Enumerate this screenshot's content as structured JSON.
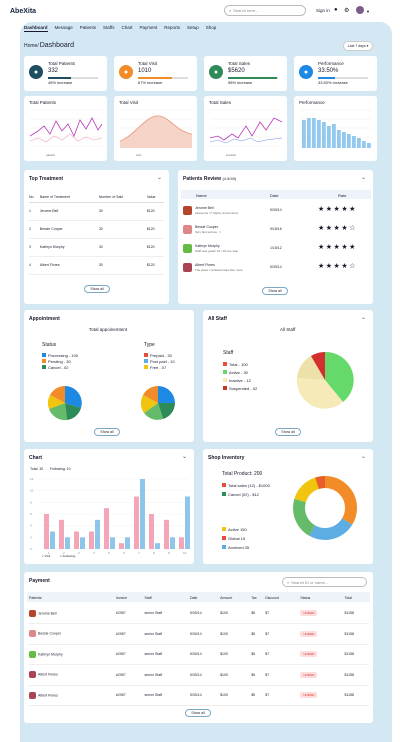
{
  "app": {
    "brand": "AbeXita",
    "search_placeholder": "Search here...",
    "signin": "Sign in"
  },
  "nav": [
    "Dashboard",
    "Message",
    "Patients",
    "Staffs",
    "Chart",
    "Payment",
    "Reports",
    "Setup",
    "Shop"
  ],
  "breadcrumb": {
    "home": "Home/",
    "page": "Dashboard"
  },
  "range_select": "Last 7 days",
  "stats": [
    {
      "label": "Total Patients",
      "value": "332",
      "increase": "45% increase",
      "color": "#1f4e5f",
      "pct": 0.45,
      "icon": "user-icon"
    },
    {
      "label": "Total Visit",
      "value": "1010",
      "increase": "67% increase",
      "color": "#f28c28",
      "pct": 0.67,
      "icon": "visit-icon"
    },
    {
      "label": "Total Sales",
      "value": "$5620",
      "increase": "98% increase",
      "color": "#2e8b57",
      "pct": 0.98,
      "icon": "sales-icon"
    },
    {
      "label": "Performance",
      "value": "33.50%",
      "increase": "33.50% increase",
      "color": "#1e88e5",
      "pct": 0.335,
      "icon": "performance-icon"
    }
  ],
  "mini_charts": [
    {
      "title": "Total Patients",
      "legend": [
        "",
        "patient"
      ]
    },
    {
      "title": "Total Visit",
      "legend": [
        "",
        "visit"
      ]
    },
    {
      "title": "Total Sales",
      "legend": [
        "",
        "product"
      ]
    },
    {
      "title": "Performance",
      "legend": []
    }
  ],
  "top_treatment": {
    "title": "Top Treatment",
    "headers": [
      "No.",
      "Name of Treatment",
      "Number of Sale",
      "Value"
    ],
    "rows": [
      [
        "1",
        "Jerome Bell",
        "30",
        "$120"
      ],
      [
        "2",
        "Bessie Cooper",
        "30",
        "$120"
      ],
      [
        "3",
        "Kathryn Murphy",
        "30",
        "$120"
      ],
      [
        "4",
        "Albert Flores",
        "30",
        "$120"
      ]
    ],
    "show_all": "Show all"
  },
  "reviews": {
    "title": "Patients Review",
    "count": "(4.5/40)",
    "headers": [
      "Name",
      "Date",
      "Rate"
    ],
    "rows": [
      {
        "name": "Jerome Bell",
        "msg": "Awesome !! I highly recommend",
        "date": "5/30/14",
        "stars": "★★★★★",
        "color": "#b3452c"
      },
      {
        "name": "Bessie Cooper",
        "msg": "Very fast service. :)",
        "date": "9/18/16",
        "stars": "★★★★☆",
        "color": "#d88"
      },
      {
        "name": "Kathryn Murphy",
        "msg": "Staff was great! 10 / 10 one stop",
        "date": "1/15/12",
        "stars": "★★★★★",
        "color": "#6b4"
      },
      {
        "name": "Albert Flores",
        "msg": "The place I reviewed was See more",
        "date": "5/30/14",
        "stars": "★★★★☆",
        "color": "#a45"
      }
    ],
    "show_all": "Show all"
  },
  "appointment": {
    "title": "Appointment",
    "subtitle": "Total appoinemtent",
    "status_label": "Status",
    "type_label": "Type",
    "status": [
      {
        "label": "Processing - 100",
        "color": "#1e88e5"
      },
      {
        "label": "Pending - 30",
        "color": "#f28c28"
      },
      {
        "label": "Cancel - 02",
        "color": "#2e8b57"
      }
    ],
    "type": [
      {
        "label": "Prepaid - 30",
        "color": "#e74c3c"
      },
      {
        "label": "Post paid - 10",
        "color": "#5dade2"
      },
      {
        "label": "Free - 07",
        "color": "#f1c40f"
      }
    ],
    "show_all": "Show all"
  },
  "staff": {
    "title": "All Staff",
    "subtitle": "All Staff",
    "label": "Staff",
    "items": [
      {
        "label": "Total - 100",
        "color": "#e74c3c"
      },
      {
        "label": "Active - 30",
        "color": "#66d96b"
      },
      {
        "label": "Inactive - 12",
        "color": "#f5eab8"
      },
      {
        "label": "Suspended - 02",
        "color": "#c0392b"
      }
    ],
    "show_all": "Show all"
  },
  "chart": {
    "title": "Chart",
    "legend": [
      "Total: 30",
      "Following: 10"
    ],
    "series_legend": [
      "Visit",
      "Following"
    ]
  },
  "chart_data": {
    "type": "bar",
    "categories": [
      "1",
      "2",
      "3",
      "4",
      "5",
      "6",
      "7",
      "8",
      "9",
      "10"
    ],
    "ylim": [
      0,
      12
    ],
    "series": [
      {
        "name": "Visit",
        "values": [
          6,
          5,
          3,
          3,
          7,
          1,
          9,
          6,
          5,
          2
        ]
      },
      {
        "name": "Following",
        "values": [
          3,
          2,
          2,
          5,
          2,
          2,
          12,
          1,
          2,
          9
        ]
      }
    ]
  },
  "shop": {
    "title": "Shop Inventory",
    "total": "Total Product: 200",
    "legend": [
      {
        "label": "Total sales (12) - $1000",
        "color": "#e74c3c"
      },
      {
        "label": "Cancel (02) - $12",
        "color": "#2e8b57"
      },
      {
        "label": "Active  150",
        "color": "#f1c40f"
      },
      {
        "label": "Global  15",
        "color": "#e74c3c"
      },
      {
        "label": "Archived  35",
        "color": "#5dade2"
      }
    ]
  },
  "payment": {
    "title": "Payment",
    "search_placeholder": "Search ID or name...",
    "headers": [
      "Patients",
      "Invoice",
      "Staff",
      "Date",
      "Amount",
      "Tax",
      "Discount",
      "Status",
      "Total"
    ],
    "rows": [
      [
        "Jerome Bell",
        "#2957",
        "senior Staff",
        "5/30/14",
        "$100",
        "$5",
        "$7",
        "UNPAID",
        "$1158"
      ],
      [
        "Bessie Cooper",
        "#2957",
        "senior Staff",
        "5/30/14",
        "$100",
        "$5",
        "$7",
        "UNPAID",
        "$1158"
      ],
      [
        "Kathryn Murphy",
        "#2957",
        "senior Staff",
        "5/30/14",
        "$100",
        "$5",
        "$7",
        "UNPAID",
        "$1158"
      ],
      [
        "Albert Flores",
        "#2957",
        "senior Staff",
        "5/30/14",
        "$100",
        "$5",
        "$7",
        "UNPAID",
        "$1158"
      ],
      [
        "Albert Flores",
        "#2957",
        "senior Staff",
        "5/30/14",
        "$100",
        "$5",
        "$7",
        "UNPAID",
        "$1158"
      ]
    ],
    "show_all": "Show all"
  }
}
